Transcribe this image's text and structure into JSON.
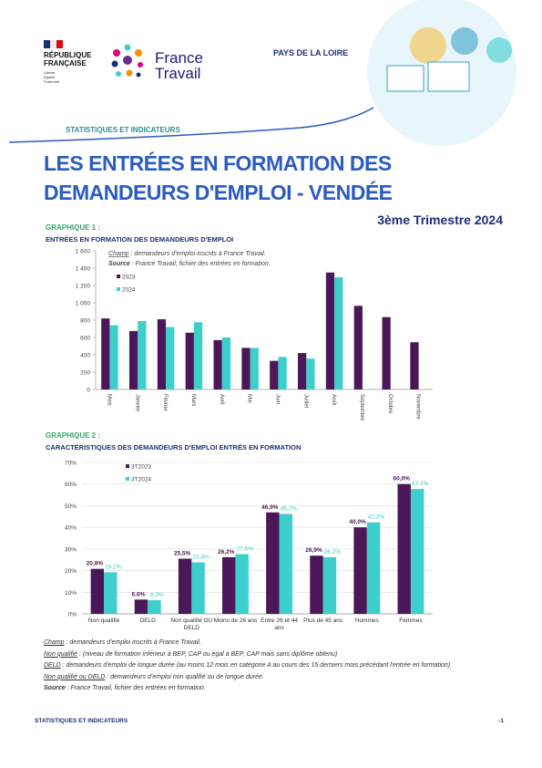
{
  "header": {
    "republique": [
      "RÉPUBLIQUE",
      "FRANÇAISE"
    ],
    "devise": [
      "Liberté",
      "Égalité",
      "Fraternité"
    ],
    "brand": [
      "France",
      "Travail"
    ],
    "region": "PAYS DE LA LOIRE",
    "section": "STATISTIQUES ET INDICATEURS"
  },
  "title": [
    "LES ENTRÉES EN FORMATION DES",
    "DEMANDEURS D'EMPLOI - VENDÉE"
  ],
  "period": "3ème Trimestre 2024",
  "chart_data": [
    {
      "type": "bar",
      "label": "GRAPHIQUE 1 :",
      "title": "ENTRÉES EN FORMATION DES DEMANDEURS D'EMPLOI",
      "annotations": [
        {
          "label": "Champ",
          "text": " : demandeurs d'emploi inscrits à France Travail."
        },
        {
          "label": "Source",
          "text": " : France Travail, fichier des entrées en formation."
        }
      ],
      "categories": [
        "Mois",
        "Janvier",
        "Février",
        "Mars",
        "Avril",
        "Mai",
        "Juin",
        "Juillet",
        "Août",
        "Septembre",
        "Octobre",
        "Novembre"
      ],
      "series": [
        {
          "name": "2023",
          "color": "#4b1758",
          "values": [
            820,
            675,
            810,
            655,
            570,
            480,
            330,
            420,
            1350,
            965,
            835,
            545
          ]
        },
        {
          "name": "2024",
          "color": "#3ccfcb",
          "values": [
            740,
            790,
            720,
            775,
            600,
            480,
            375,
            355,
            1295,
            null,
            null,
            null
          ]
        }
      ],
      "ylim": [
        0,
        1600
      ],
      "yticks": [
        0,
        200,
        400,
        600,
        800,
        {
          "value": 1000,
          "label": "1 000"
        },
        {
          "value": 1200,
          "label": "1 200"
        },
        {
          "value": 1400,
          "label": "1 400"
        },
        {
          "value": 1600,
          "label": "1 600"
        }
      ],
      "grid": false,
      "rotate_labels": true
    },
    {
      "type": "bar",
      "label": "GRAPHIQUE 2 :",
      "title": "CARACTÉRISTIQUES DES DEMANDEURS D'EMPLOI ENTRÉS EN FORMATION",
      "categories": [
        "Non qualifié",
        "DELD",
        "Non qualifié OU DELD",
        "Moins de 26 ans",
        "Entre 26 et 44 ans",
        "Plus de 45 ans",
        "Hommes",
        "Femmes"
      ],
      "series": [
        {
          "name": "3T2023",
          "color": "#4b1758",
          "values": [
            20.8,
            6.6,
            25.5,
            26.2,
            46.9,
            26.9,
            40.0,
            60.0
          ],
          "value_labels": [
            "20,8%",
            "6,6%",
            "25,5%",
            "26,2%",
            "46,9%",
            "26,9%",
            "40,0%",
            "60,0%"
          ]
        },
        {
          "name": "3T2024",
          "color": "#3ccfcb",
          "values": [
            19.2,
            6.3,
            23.8,
            27.6,
            46.2,
            26.2,
            42.3,
            57.7
          ],
          "value_labels": [
            "19,2%",
            "6,3%",
            "23,8%",
            "27,6%",
            "46,2%",
            "26,2%",
            "42,3%",
            "57,7%"
          ]
        }
      ],
      "ylim": [
        0,
        70
      ],
      "yticks": [
        {
          "value": 0,
          "label": "0%"
        },
        {
          "value": 10,
          "label": "10%"
        },
        {
          "value": 20,
          "label": "20%"
        },
        {
          "value": 30,
          "label": "30%"
        },
        {
          "value": 40,
          "label": "40%"
        },
        {
          "value": 50,
          "label": "50%"
        },
        {
          "value": 60,
          "label": "60%"
        },
        {
          "value": 70,
          "label": "70%"
        }
      ],
      "grid": true,
      "rotate_labels": false
    }
  ],
  "notes": [
    {
      "label": "Champ",
      "text": " : demandeurs d'emploi inscrits à France Travail."
    },
    {
      "label": "Non qualifié",
      "text": " : (niveau de formation inférieur à BEP, CAP ou égal à BEP, CAP mais sans diplôme obtenu)"
    },
    {
      "label": "DELD",
      "text": " : demandeurs d'emploi de longue durée (au moins 12 mois en catégorie A au cours des 15 derniers mois précédant l'entrée en formation)."
    },
    {
      "label": "Non qualifié ou DELD",
      "text": " : demandeurs d'emploi non qualifié ou de longue durée."
    },
    {
      "label": "Source",
      "text": " : France Travail, fichier des entrées en formation."
    }
  ],
  "footer": {
    "section": "STATISTIQUES ET INDICATEURS",
    "page": "-1"
  }
}
